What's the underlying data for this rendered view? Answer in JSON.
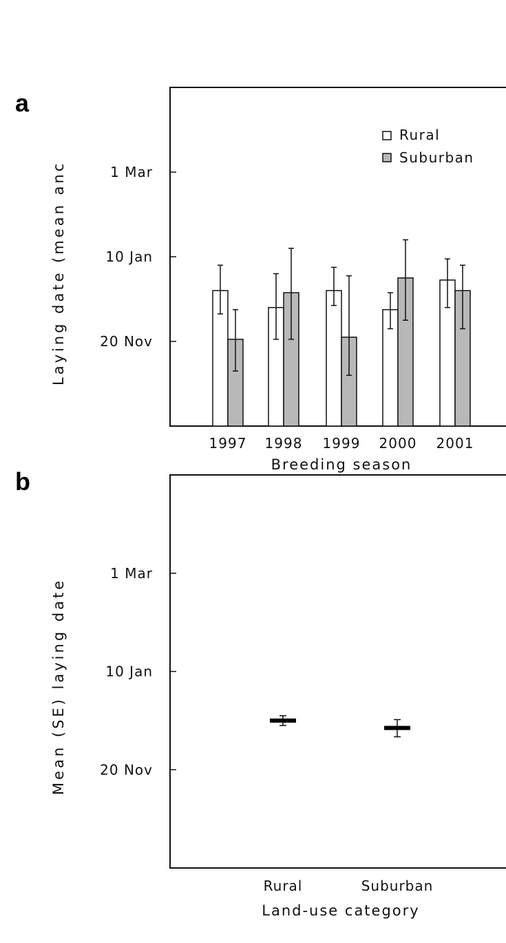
{
  "figure": {
    "ylabel_top": "Laying date (mean anc",
    "ylabel_bottom": "Mean (SE) laying date"
  },
  "colors": {
    "rural": "#ffffff",
    "suburban": "#b8b8b8",
    "stroke": "#111111"
  },
  "chart_data": [
    {
      "type": "bar",
      "panel_label": "a",
      "xlabel": "Breeding season",
      "categories": [
        "1997",
        "1998",
        "1999",
        "2000",
        "2001"
      ],
      "yticks": [
        {
          "label": "20 Nov",
          "value": 20
        },
        {
          "label": "10 Jan",
          "value": 40
        },
        {
          "label": "1 Mar",
          "value": 60
        }
      ],
      "ylim": [
        0,
        80
      ],
      "legend_position": "top-right",
      "series": [
        {
          "name": "Rural",
          "color": "#ffffff",
          "values": [
            32,
            28,
            32,
            27.5,
            34.5
          ],
          "err_low": [
            26.5,
            20.5,
            28.5,
            23,
            28
          ],
          "err_high": [
            38,
            36,
            37.5,
            31.5,
            39.5
          ]
        },
        {
          "name": "Suburban",
          "color": "#b8b8b8",
          "values": [
            20.5,
            31.5,
            21,
            35,
            32
          ],
          "err_low": [
            13,
            20.5,
            12,
            25,
            23
          ],
          "err_high": [
            27.5,
            42,
            35.5,
            44,
            38
          ]
        }
      ]
    },
    {
      "type": "scatter",
      "panel_label": "b",
      "xlabel": "Land-use category",
      "categories": [
        "Rural",
        "Suburban"
      ],
      "yticks": [
        {
          "label": "20 Nov",
          "value": 20
        },
        {
          "label": "10 Jan",
          "value": 40
        },
        {
          "label": "1 Mar",
          "value": 60
        }
      ],
      "ylim": [
        0,
        80
      ],
      "points": [
        {
          "category": "Rural",
          "mean": 30,
          "err_low": 29,
          "err_high": 31
        },
        {
          "category": "Suburban",
          "mean": 28.5,
          "err_low": 26.7,
          "err_high": 30.2
        }
      ]
    }
  ]
}
